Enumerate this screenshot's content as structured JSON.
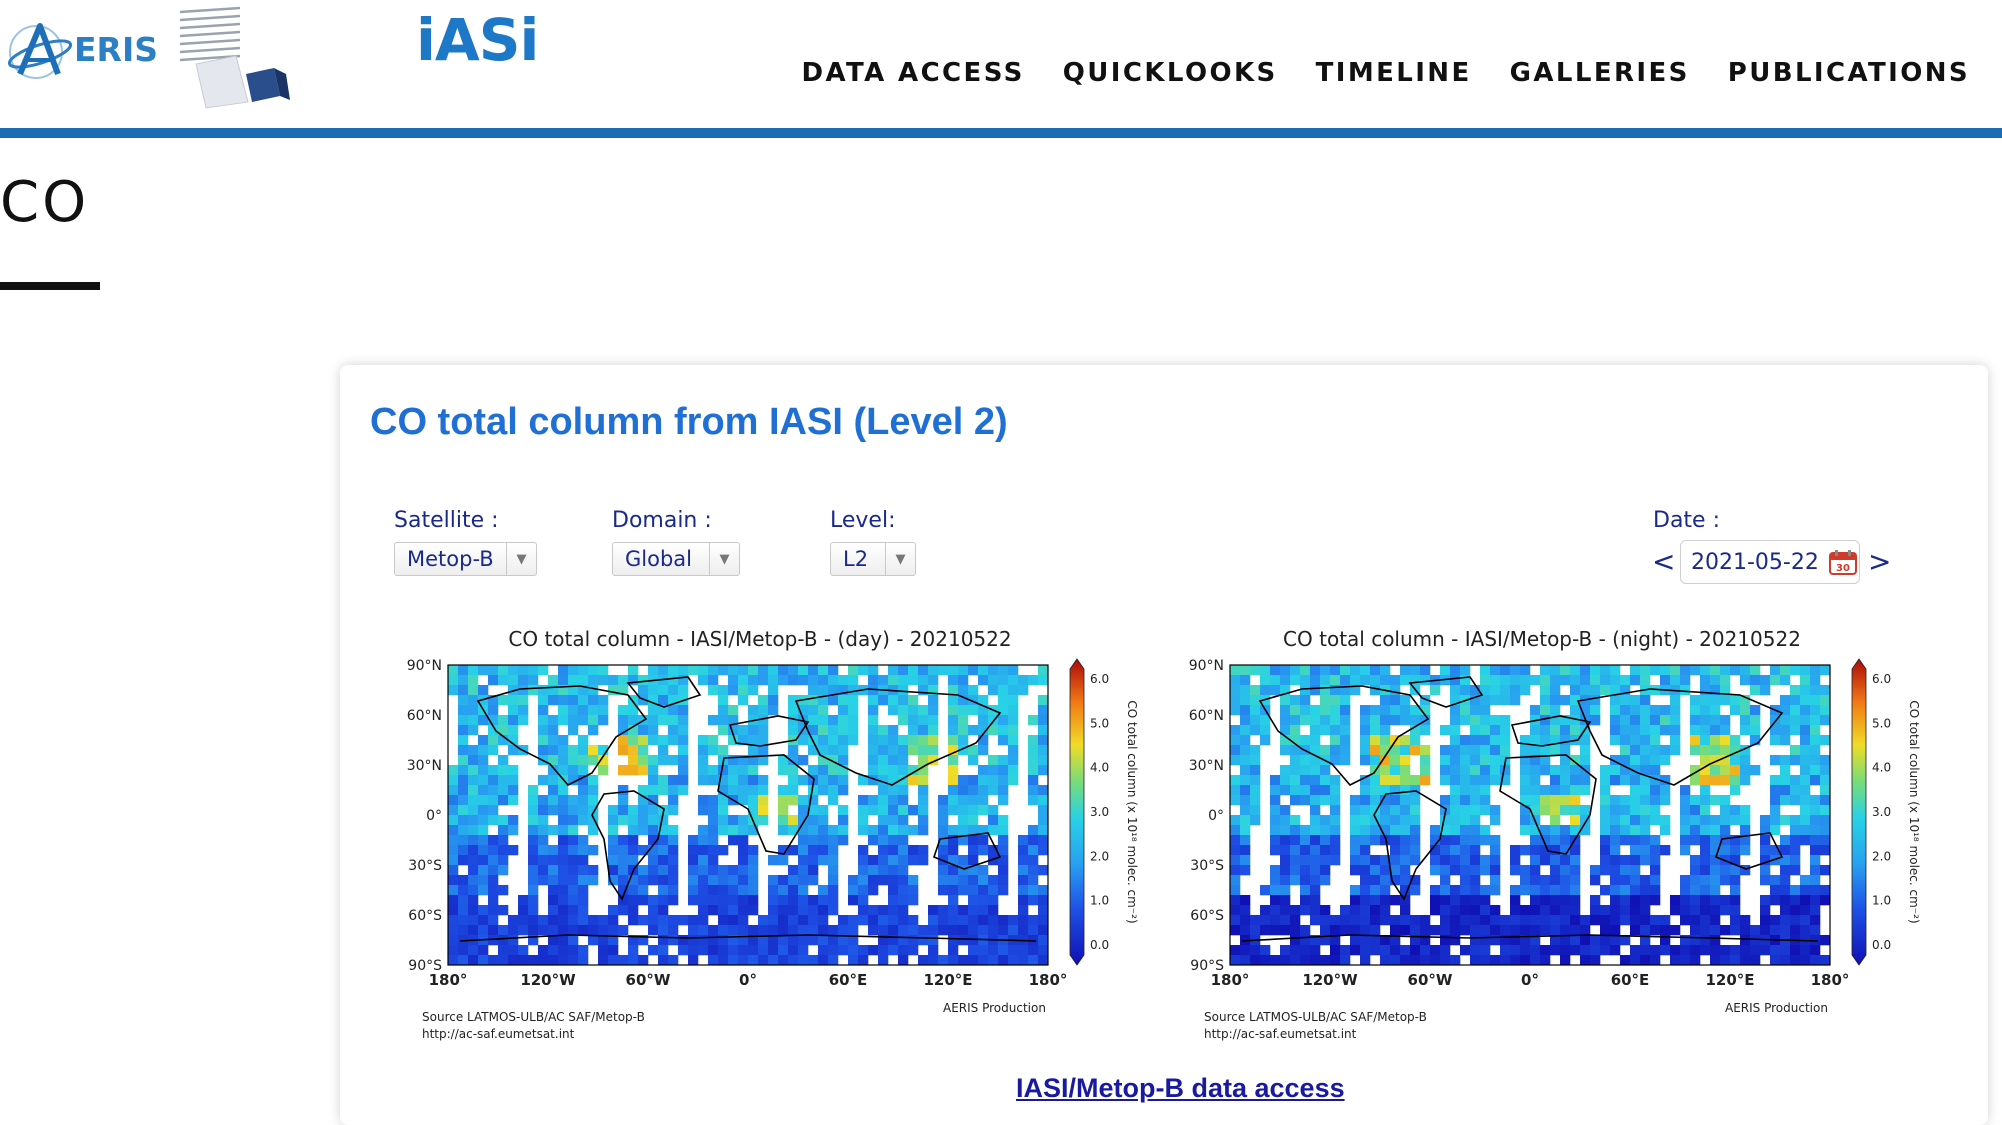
{
  "header": {
    "aeris_logo": "ERIS",
    "iasi_logo": "iASi",
    "nav": [
      "DATA ACCESS",
      "QUICKLOOKS",
      "TIMELINE",
      "GALLERIES",
      "PUBLICATIONS"
    ],
    "accent_color": "#1c6cb5"
  },
  "page": {
    "title": "CO"
  },
  "card": {
    "title": "CO total column from IASI (Level 2)",
    "title_color": "#1f6fd4",
    "controls": {
      "satellite_label": "Satellite :",
      "satellite_value": "Metop-B",
      "domain_label": "Domain :",
      "domain_value": "Global",
      "level_label": "Level:",
      "level_value": "L2",
      "date_label": "Date :",
      "date_value": "2021-05-22",
      "date_prev": "<",
      "date_next": ">",
      "calendar_icon_text": "30"
    },
    "maps": [
      {
        "title": "CO total column - IASI/Metop-B - (day) - 20210522",
        "source_line1": "Source LATMOS-ULB/AC SAF/Metop-B",
        "source_line2": "http://ac-saf.eumetsat.int",
        "production": "AERIS Production"
      },
      {
        "title": "CO total column - IASI/Metop-B - (night) - 20210522",
        "source_line1": "Source LATMOS-ULB/AC SAF/Metop-B",
        "source_line2": "http://ac-saf.eumetsat.int",
        "production": "AERIS Production"
      }
    ],
    "lat_ticks": [
      "90°N",
      "60°N",
      "30°N",
      "0°",
      "30°S",
      "60°S",
      "90°S"
    ],
    "lon_ticks": [
      "180°",
      "120°W",
      "60°W",
      "0°",
      "60°E",
      "120°E",
      "180°"
    ],
    "colorbar": {
      "label": "CO total column (x 10¹⁸ molec. cm⁻²)",
      "ticks": [
        "6.0",
        "5.0",
        "4.0",
        "3.0",
        "2.0",
        "1.0",
        "0.0"
      ]
    },
    "data_link": "IASI/Metop-B data access"
  }
}
